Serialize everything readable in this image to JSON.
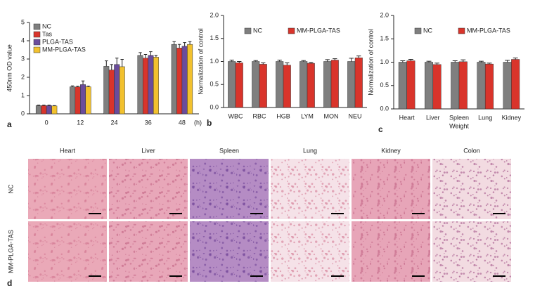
{
  "chart_data": [
    {
      "type": "bar",
      "panel": "a",
      "ylabel": "450nm OD value",
      "xlabel": "(h)",
      "xlabel_position": "right",
      "categories": [
        "0",
        "12",
        "24",
        "36",
        "48"
      ],
      "ylim": [
        0,
        5
      ],
      "yticks": [
        0,
        1,
        2,
        3,
        4,
        5
      ],
      "legend": "upper left",
      "series": [
        {
          "name": "NC",
          "color": "#7f7f7f",
          "values": [
            0.45,
            1.48,
            2.6,
            3.2,
            3.8
          ],
          "errors": [
            0.03,
            0.05,
            0.3,
            0.15,
            0.15
          ]
        },
        {
          "name": "Tas",
          "color": "#d9342b",
          "values": [
            0.45,
            1.47,
            2.4,
            3.05,
            3.6
          ],
          "errors": [
            0.03,
            0.04,
            0.3,
            0.2,
            0.2
          ]
        },
        {
          "name": "PLGA-TAS",
          "color": "#6a4c9c",
          "values": [
            0.45,
            1.6,
            2.7,
            3.2,
            3.7
          ],
          "errors": [
            0.03,
            0.2,
            0.35,
            0.2,
            0.2
          ]
        },
        {
          "name": "MM-PLGA-TAS",
          "color": "#f2c12e",
          "values": [
            0.43,
            1.48,
            2.58,
            3.1,
            3.8
          ],
          "errors": [
            0.02,
            0.04,
            0.4,
            0.1,
            0.15
          ]
        }
      ]
    },
    {
      "type": "bar",
      "panel": "b",
      "ylabel": "Normalization of control",
      "categories": [
        "WBC",
        "RBC",
        "HGB",
        "LYM",
        "MON",
        "NEU"
      ],
      "ylim": [
        0,
        2
      ],
      "yticks": [
        {
          "value": 0,
          "label": "0.0"
        },
        {
          "value": 0.5,
          "label": "0.5"
        },
        {
          "value": 1,
          "label": "1.0"
        },
        {
          "value": 1.5,
          "label": "1.5"
        },
        {
          "value": 2,
          "label": "2.0"
        }
      ],
      "legend": "upper center",
      "series": [
        {
          "name": "NC",
          "color": "#7f7f7f",
          "values": [
            1.0,
            1.0,
            1.0,
            1.0,
            1.0,
            1.0
          ],
          "errors": [
            0.03,
            0.02,
            0.03,
            0.02,
            0.04,
            0.07
          ]
        },
        {
          "name": "MM-PLGA-TAS",
          "color": "#d9342b",
          "values": [
            0.97,
            0.94,
            0.92,
            0.96,
            1.03,
            1.08
          ],
          "errors": [
            0.03,
            0.03,
            0.05,
            0.02,
            0.03,
            0.04
          ]
        }
      ]
    },
    {
      "type": "bar",
      "panel": "c",
      "ylabel": "Normalization of control",
      "xlabel": "Weight",
      "xlabel_position": "bottom",
      "categories": [
        "Heart",
        "Liver",
        "Spleen",
        "Lung",
        "Kidney"
      ],
      "ylim": [
        0,
        2
      ],
      "yticks": [
        {
          "value": 0,
          "label": "0.0"
        },
        {
          "value": 0.5,
          "label": "0.5"
        },
        {
          "value": 1,
          "label": "1.0"
        },
        {
          "value": 1.5,
          "label": "1.5"
        },
        {
          "value": 2,
          "label": "2.0"
        }
      ],
      "legend": "upper center",
      "series": [
        {
          "name": "NC",
          "color": "#7f7f7f",
          "values": [
            1.0,
            1.0,
            1.0,
            1.0,
            1.0
          ],
          "errors": [
            0.03,
            0.02,
            0.03,
            0.02,
            0.04
          ]
        },
        {
          "name": "MM-PLGA-TAS",
          "color": "#d9342b",
          "values": [
            1.03,
            0.95,
            1.01,
            0.96,
            1.06
          ],
          "errors": [
            0.03,
            0.03,
            0.04,
            0.02,
            0.03
          ]
        }
      ]
    }
  ],
  "histology": {
    "panel": "d",
    "columns": [
      "Heart",
      "Liver",
      "Spleen",
      "Lung",
      "Kidney",
      "Colon"
    ],
    "rows": [
      "NC",
      "MM-PLGA-TAS"
    ]
  }
}
